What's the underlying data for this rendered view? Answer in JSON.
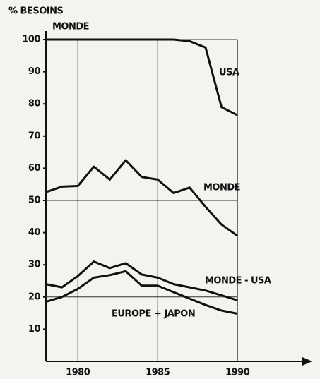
{
  "chart_data": {
    "type": "line",
    "title": "% BESOINS",
    "subtitle": "MONDE",
    "x": [
      1978,
      1979,
      1980,
      1981,
      1982,
      1983,
      1984,
      1985,
      1986,
      1987,
      1988,
      1989,
      1990
    ],
    "series": [
      {
        "name": "USA",
        "color": "#111111",
        "values": [
          100,
          100,
          100,
          100,
          100,
          100,
          100,
          100,
          100,
          99.5,
          97.5,
          79,
          76.5
        ]
      },
      {
        "name": "MONDE",
        "color": "#111111",
        "values": [
          52.6,
          54.3,
          54.5,
          60.5,
          56.5,
          62.5,
          57.3,
          56.5,
          52.3,
          54,
          48,
          42.5,
          39
        ]
      },
      {
        "name": "MONDE - USA",
        "color": "#111111",
        "values": [
          24,
          23,
          26.5,
          31,
          29,
          30.5,
          27,
          26,
          24,
          23,
          22,
          20.5,
          19
        ]
      },
      {
        "name": "EUROPE + JAPON",
        "color": "#111111",
        "values": [
          18.5,
          20,
          22.5,
          26,
          26.8,
          28,
          23.5,
          23.5,
          21.5,
          19.5,
          17.5,
          15.8,
          14.8
        ]
      }
    ],
    "xlim": [
      1978,
      1994
    ],
    "ylim": [
      0,
      102
    ],
    "xticks": [
      1980,
      1985,
      1990
    ],
    "yticks": [
      10,
      20,
      30,
      40,
      50,
      60,
      70,
      80,
      90,
      100
    ],
    "reference_lines": [
      100,
      50,
      20
    ],
    "grid": true
  }
}
